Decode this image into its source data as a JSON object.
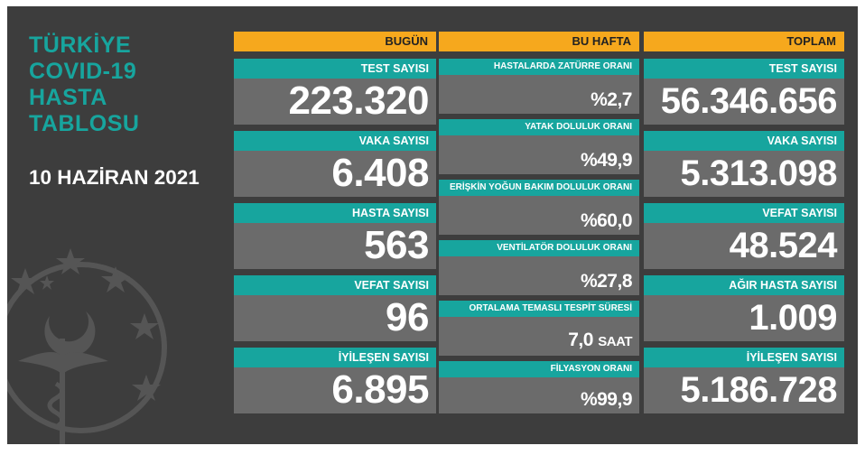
{
  "title": "TÜRKİYE\nCOVID-19\nHASTA\nTABLOSU",
  "date": "10 HAZİRAN 2021",
  "headers": {
    "today": "BUGÜN",
    "week": "BU HAFTA",
    "total": "TOPLAM"
  },
  "today": [
    {
      "label": "TEST SAYISI",
      "value": "223.320"
    },
    {
      "label": "VAKA SAYISI",
      "value": "6.408"
    },
    {
      "label": "HASTA SAYISI",
      "value": "563"
    },
    {
      "label": "VEFAT SAYISI",
      "value": "96"
    },
    {
      "label": "İYİLEŞEN SAYISI",
      "value": "6.895"
    }
  ],
  "week": [
    {
      "label": "HASTALARDA ZATÜRRE ORANI",
      "value": "%2,7",
      "unit": ""
    },
    {
      "label": "YATAK DOLULUK ORANI",
      "value": "%49,9",
      "unit": ""
    },
    {
      "label": "ERİŞKİN YOĞUN BAKIM DOLULUK ORANI",
      "value": "%60,0",
      "unit": ""
    },
    {
      "label": "VENTİLATÖR DOLULUK ORANI",
      "value": "%27,8",
      "unit": ""
    },
    {
      "label": "ORTALAMA TEMASLI TESPİT SÜRESİ",
      "value": "7,0",
      "unit": "SAAT"
    },
    {
      "label": "FİLYASYON ORANI",
      "value": "%99,9",
      "unit": ""
    }
  ],
  "total": [
    {
      "label": "TEST SAYISI",
      "value": "56.346.656"
    },
    {
      "label": "VAKA SAYISI",
      "value": "5.313.098"
    },
    {
      "label": "VEFAT SAYISI",
      "value": "48.524"
    },
    {
      "label": "AĞIR HASTA SAYISI",
      "value": "1.009"
    },
    {
      "label": "İYİLEŞEN SAYISI",
      "value": "5.186.728"
    }
  ],
  "colors": {
    "background": "#3d3d3d",
    "accent_teal": "#17a59e",
    "header_orange": "#f6a81d",
    "card_gray": "#6b6b6b"
  },
  "icons": [
    "ministry-emblem-icon"
  ]
}
